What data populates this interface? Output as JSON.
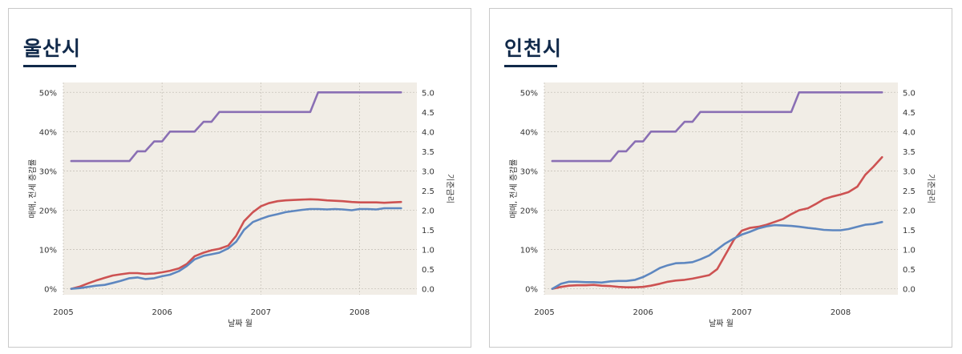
{
  "panels": [
    {
      "title": "울산시"
    },
    {
      "title": "인천시"
    }
  ],
  "colors": {
    "sales": "#cd5252",
    "jeonse": "#5e87c0",
    "rate": "#8a6fb4",
    "plot_bg": "#f1ede6",
    "grid": "#c8c3ba"
  },
  "chart_data": [
    {
      "type": "line",
      "title": "울산시",
      "xlabel": "날짜 월",
      "ylabel": "매매, 전세 증감률",
      "y2label": "기준금리",
      "xlim": [
        2005.0,
        2008.58
      ],
      "xticks": [
        2005,
        2006,
        2007,
        2008
      ],
      "xtick_labels": [
        "2005",
        "2006",
        "2007",
        "2008"
      ],
      "ylim": [
        -1.5,
        52.5
      ],
      "yticks": [
        0,
        10,
        20,
        30,
        40,
        50
      ],
      "ytick_labels": [
        "0%",
        "10%",
        "20%",
        "30%",
        "40%",
        "50%"
      ],
      "y2lim": [
        -0.15,
        5.25
      ],
      "y2ticks": [
        0,
        0.5,
        1,
        1.5,
        2,
        2.5,
        3,
        3.5,
        4,
        4.5,
        5
      ],
      "y2tick_labels": [
        "0.0",
        "0.5",
        "1.0",
        "1.5",
        "2.0",
        "2.5",
        "3.0",
        "3.5",
        "4.0",
        "4.5",
        "5.0"
      ],
      "series": [
        {
          "name": "매매",
          "axis": "left",
          "x": [
            2005.08,
            2005.17,
            2005.25,
            2005.33,
            2005.42,
            2005.5,
            2005.58,
            2005.67,
            2005.75,
            2005.83,
            2005.92,
            2006.0,
            2006.08,
            2006.17,
            2006.25,
            2006.33,
            2006.42,
            2006.5,
            2006.58,
            2006.67,
            2006.75,
            2006.83,
            2006.92,
            2007.0,
            2007.08,
            2007.17,
            2007.25,
            2007.33,
            2007.42,
            2007.5,
            2007.58,
            2007.67,
            2007.75,
            2007.83,
            2007.92,
            2008.0,
            2008.08,
            2008.17,
            2008.25,
            2008.33,
            2008.42
          ],
          "y": [
            0.0,
            0.6,
            1.4,
            2.1,
            2.8,
            3.4,
            3.7,
            4.0,
            4.0,
            3.8,
            3.9,
            4.2,
            4.6,
            5.2,
            6.3,
            8.3,
            9.2,
            9.8,
            10.2,
            11.0,
            13.5,
            17.2,
            19.5,
            21.0,
            21.8,
            22.3,
            22.5,
            22.6,
            22.7,
            22.8,
            22.7,
            22.5,
            22.4,
            22.3,
            22.1,
            22.0,
            22.0,
            22.0,
            21.9,
            22.0,
            22.1
          ]
        },
        {
          "name": "전세",
          "axis": "left",
          "x": [
            2005.08,
            2005.17,
            2005.25,
            2005.33,
            2005.42,
            2005.5,
            2005.58,
            2005.67,
            2005.75,
            2005.83,
            2005.92,
            2006.0,
            2006.08,
            2006.17,
            2006.25,
            2006.33,
            2006.42,
            2006.5,
            2006.58,
            2006.67,
            2006.75,
            2006.83,
            2006.92,
            2007.0,
            2007.08,
            2007.17,
            2007.25,
            2007.33,
            2007.42,
            2007.5,
            2007.58,
            2007.67,
            2007.75,
            2007.83,
            2007.92,
            2008.0,
            2008.08,
            2008.17,
            2008.25,
            2008.33,
            2008.42
          ],
          "y": [
            0.0,
            0.2,
            0.5,
            0.8,
            1.0,
            1.5,
            2.0,
            2.7,
            2.9,
            2.5,
            2.7,
            3.2,
            3.6,
            4.5,
            5.8,
            7.5,
            8.4,
            8.8,
            9.2,
            10.3,
            12.0,
            15.0,
            17.0,
            17.8,
            18.5,
            19.0,
            19.5,
            19.8,
            20.1,
            20.3,
            20.3,
            20.2,
            20.3,
            20.2,
            20.0,
            20.3,
            20.3,
            20.2,
            20.5,
            20.5,
            20.5
          ]
        },
        {
          "name": "기준금리",
          "axis": "right",
          "x": [
            2005.08,
            2005.67,
            2005.75,
            2005.83,
            2005.92,
            2006.0,
            2006.08,
            2006.17,
            2006.33,
            2006.42,
            2006.5,
            2006.58,
            2007.33,
            2007.5,
            2007.58,
            2008.42
          ],
          "y": [
            3.25,
            3.25,
            3.5,
            3.5,
            3.75,
            3.75,
            4.0,
            4.0,
            4.0,
            4.25,
            4.25,
            4.5,
            4.5,
            4.5,
            5.0,
            5.0
          ]
        }
      ]
    },
    {
      "type": "line",
      "title": "인천시",
      "xlabel": "날짜 월",
      "ylabel": "매매, 전세 증감률",
      "y2label": "기준금리",
      "xlim": [
        2005.0,
        2008.58
      ],
      "xticks": [
        2005,
        2006,
        2007,
        2008
      ],
      "xtick_labels": [
        "2005",
        "2006",
        "2007",
        "2008"
      ],
      "ylim": [
        -1.5,
        52.5
      ],
      "yticks": [
        0,
        10,
        20,
        30,
        40,
        50
      ],
      "ytick_labels": [
        "0%",
        "10%",
        "20%",
        "30%",
        "40%",
        "50%"
      ],
      "y2lim": [
        -0.15,
        5.25
      ],
      "y2ticks": [
        0,
        0.5,
        1,
        1.5,
        2,
        2.5,
        3,
        3.5,
        4,
        4.5,
        5
      ],
      "y2tick_labels": [
        "0.0",
        "0.5",
        "1.0",
        "1.5",
        "2.0",
        "2.5",
        "3.0",
        "3.5",
        "4.0",
        "4.5",
        "5.0"
      ],
      "series": [
        {
          "name": "매매",
          "axis": "left",
          "x": [
            2005.08,
            2005.17,
            2005.25,
            2005.33,
            2005.42,
            2005.5,
            2005.58,
            2005.67,
            2005.75,
            2005.83,
            2005.92,
            2006.0,
            2006.08,
            2006.17,
            2006.25,
            2006.33,
            2006.42,
            2006.5,
            2006.58,
            2006.67,
            2006.75,
            2006.83,
            2006.92,
            2007.0,
            2007.08,
            2007.17,
            2007.25,
            2007.33,
            2007.42,
            2007.5,
            2007.58,
            2007.67,
            2007.75,
            2007.83,
            2007.92,
            2008.0,
            2008.08,
            2008.17,
            2008.25,
            2008.33,
            2008.42
          ],
          "y": [
            0.0,
            0.5,
            0.8,
            0.9,
            0.9,
            1.0,
            0.8,
            0.7,
            0.5,
            0.4,
            0.4,
            0.5,
            0.8,
            1.3,
            1.8,
            2.1,
            2.3,
            2.6,
            3.0,
            3.5,
            5.0,
            8.5,
            12.5,
            14.8,
            15.5,
            15.8,
            16.3,
            17.0,
            17.8,
            19.0,
            20.0,
            20.5,
            21.6,
            22.8,
            23.5,
            24.0,
            24.6,
            26.0,
            29.0,
            31.0,
            33.5
          ]
        },
        {
          "name": "전세",
          "axis": "left",
          "x": [
            2005.08,
            2005.17,
            2005.25,
            2005.33,
            2005.42,
            2005.5,
            2005.58,
            2005.67,
            2005.75,
            2005.83,
            2005.92,
            2006.0,
            2006.08,
            2006.17,
            2006.25,
            2006.33,
            2006.42,
            2006.5,
            2006.58,
            2006.67,
            2006.75,
            2006.83,
            2006.92,
            2007.0,
            2007.08,
            2007.17,
            2007.25,
            2007.33,
            2007.42,
            2007.5,
            2007.58,
            2007.67,
            2007.75,
            2007.83,
            2007.92,
            2008.0,
            2008.08,
            2008.17,
            2008.25,
            2008.33,
            2008.42
          ],
          "y": [
            0.0,
            1.3,
            1.8,
            1.8,
            1.7,
            1.7,
            1.6,
            1.9,
            2.0,
            2.0,
            2.3,
            3.0,
            4.0,
            5.3,
            6.0,
            6.5,
            6.6,
            6.8,
            7.5,
            8.5,
            10.0,
            11.5,
            12.8,
            13.8,
            14.5,
            15.4,
            15.9,
            16.2,
            16.1,
            16.0,
            15.8,
            15.5,
            15.3,
            15.0,
            14.9,
            14.9,
            15.2,
            15.8,
            16.3,
            16.5,
            17.0
          ]
        },
        {
          "name": "기준금리",
          "axis": "right",
          "x": [
            2005.08,
            2005.67,
            2005.75,
            2005.83,
            2005.92,
            2006.0,
            2006.08,
            2006.17,
            2006.33,
            2006.42,
            2006.5,
            2006.58,
            2007.33,
            2007.5,
            2007.58,
            2008.42
          ],
          "y": [
            3.25,
            3.25,
            3.5,
            3.5,
            3.75,
            3.75,
            4.0,
            4.0,
            4.0,
            4.25,
            4.25,
            4.5,
            4.5,
            4.5,
            5.0,
            5.0
          ]
        }
      ]
    }
  ]
}
